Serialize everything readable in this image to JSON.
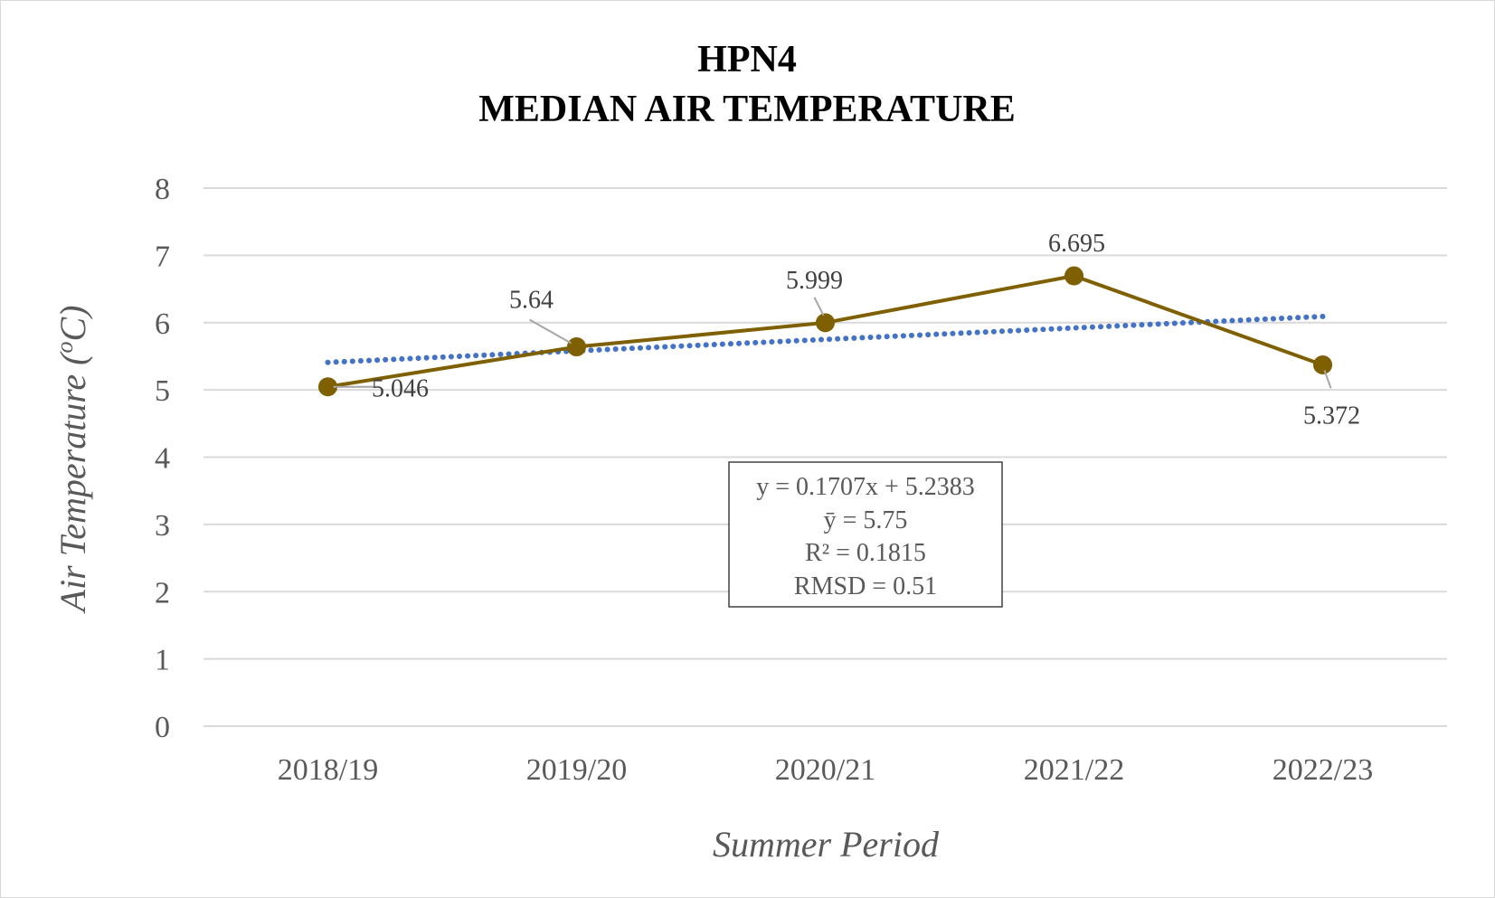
{
  "chart_data": {
    "type": "line",
    "title_line1": "HPN4",
    "title_line2": "MEDIAN AIR TEMPERATURE",
    "xlabel": "Summer Period",
    "ylabel_prefix": "Air Temperature (",
    "ylabel_sup": "o",
    "ylabel_suffix": "C)",
    "categories": [
      "2018/19",
      "2019/20",
      "2020/21",
      "2021/22",
      "2022/23"
    ],
    "series": [
      {
        "values": [
          5.046,
          5.64,
          5.999,
          6.695,
          5.372
        ],
        "labels": [
          "5.046",
          "5.64",
          "5.999",
          "6.695",
          "5.372"
        ]
      }
    ],
    "trendline": {
      "type": "linear",
      "slope": 0.1707,
      "intercept": 5.2383
    },
    "ylim": [
      0,
      8
    ],
    "yticks": [
      "0",
      "1",
      "2",
      "3",
      "4",
      "5",
      "6",
      "7",
      "8"
    ],
    "grid": true,
    "legend": "none",
    "annotation": [
      "y = 0.1707x + 5.2383",
      "ȳ = 5.75",
      "R² = 0.1815",
      "RMSD = 0.51"
    ],
    "colors": {
      "series": "#7f6000",
      "trendline": "#4472c4",
      "grid": "#d9d9d9",
      "text": "#595959",
      "title": "#000000"
    }
  }
}
